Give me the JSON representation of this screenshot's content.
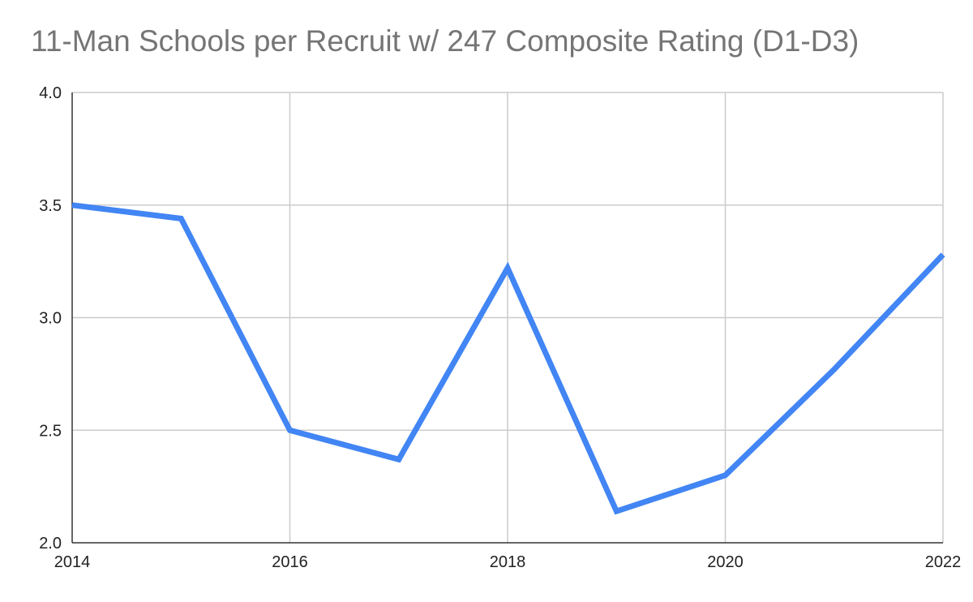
{
  "chart_data": {
    "type": "line",
    "title": "11-Man Schools per Recruit w/ 247 Composite Rating (D1-D3)",
    "xlabel": "",
    "ylabel": "",
    "x": [
      2014,
      2015,
      2016,
      2017,
      2018,
      2019,
      2020,
      2021,
      2022
    ],
    "series": [
      {
        "values": [
          3.5,
          3.44,
          2.5,
          2.37,
          3.22,
          2.14,
          2.3,
          2.77,
          3.28
        ],
        "color": "#4285f4"
      }
    ],
    "xlim": [
      2014,
      2022
    ],
    "ylim": [
      2.0,
      4.0
    ],
    "x_ticks": [
      "2014",
      "2016",
      "2018",
      "2020",
      "2022"
    ],
    "y_ticks": [
      "2.0",
      "2.5",
      "3.0",
      "3.5",
      "4.0"
    ],
    "grid": true,
    "legend": "none",
    "gridline_color": "#cccccc",
    "axis_color": "#333333"
  }
}
